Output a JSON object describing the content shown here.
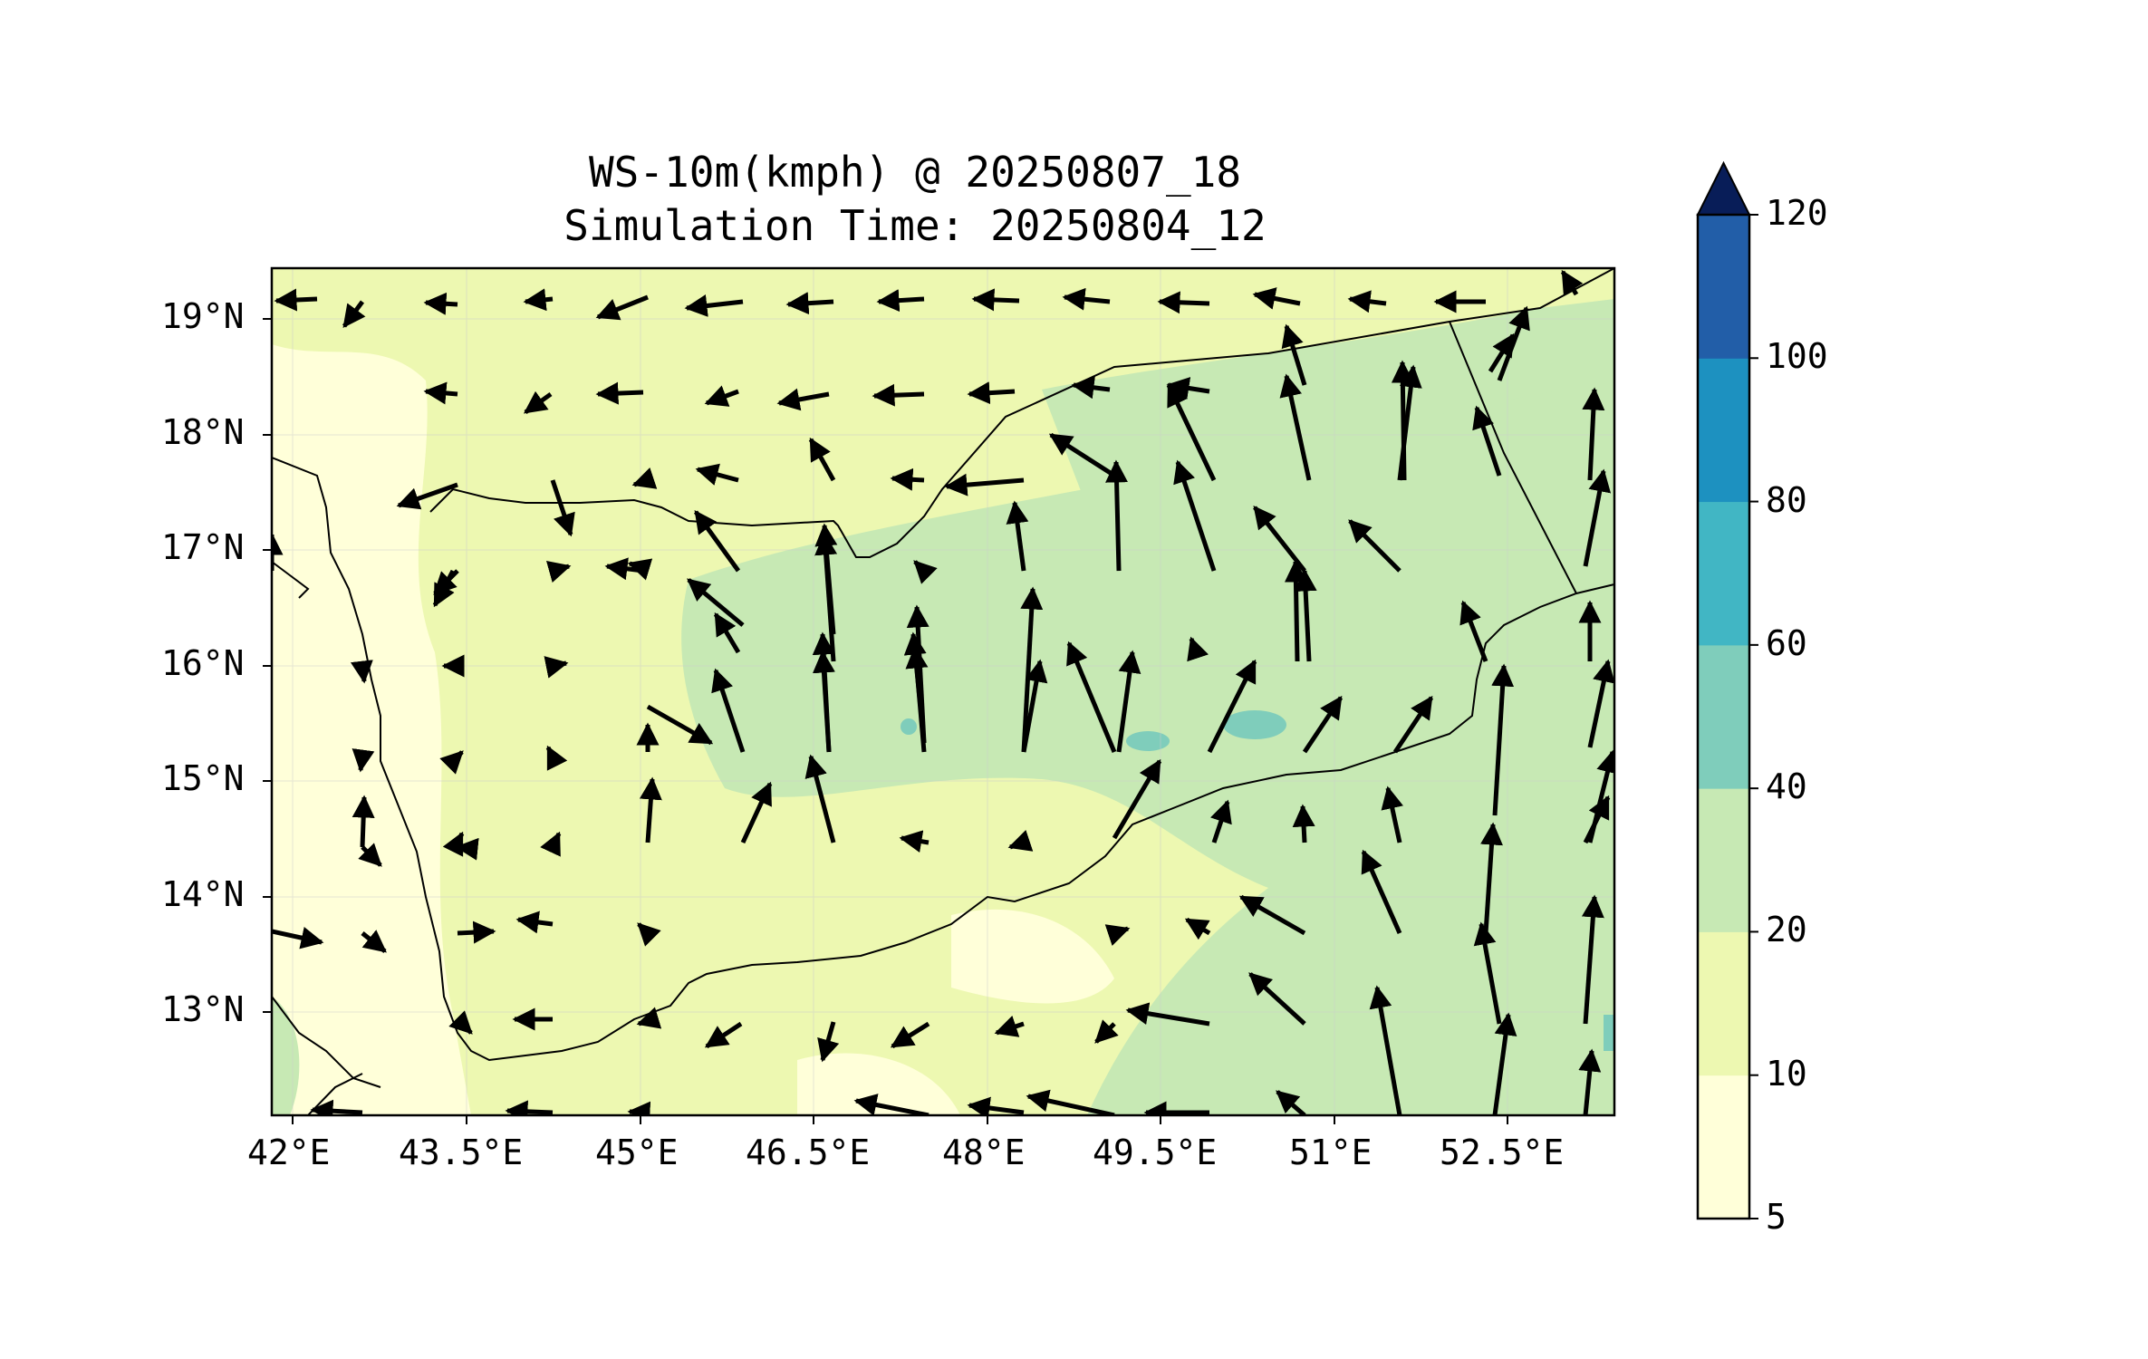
{
  "title": {
    "line1": "WS-10m(kmph) @ 20250807_18",
    "line2": "Simulation Time: 20250804_12"
  },
  "map": {
    "variable": "10m wind speed (kmph) with wind vectors",
    "lon_range": [
      41.9,
      53.5
    ],
    "lat_range": [
      12.1,
      19.45
    ],
    "lon_ticks": [
      "42°E",
      "43.5°E",
      "45°E",
      "46.5°E",
      "48°E",
      "49.5°E",
      "51°E",
      "52.5°E"
    ],
    "lat_ticks": [
      "19°N",
      "18°N",
      "17°N",
      "16°N",
      "15°N",
      "14°N",
      "13°N"
    ]
  },
  "colorbar": {
    "levels": [
      "5",
      "10",
      "20",
      "40",
      "60",
      "80",
      "100",
      "120"
    ],
    "colors": [
      "#ffffd9",
      "#edf8b1",
      "#c7e9b4",
      "#7fcdbb",
      "#41b6c4",
      "#1d91c0",
      "#225ea8",
      "#0c2c84"
    ],
    "extend_color": "#081d58"
  }
}
